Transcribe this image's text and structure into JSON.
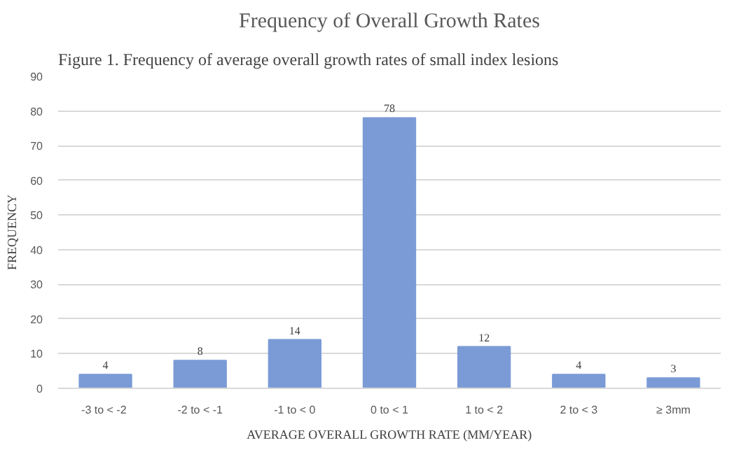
{
  "chart_data": {
    "type": "bar",
    "title": "Frequency of Overall Growth Rates",
    "annotations": [
      "Figure 1. Frequency of average overall growth rates of small index lesions"
    ],
    "xlabel": "AVERAGE OVERALL GROWTH RATE (MM/YEAR)",
    "ylabel": "FREQUENCY",
    "categories": [
      "-3  to < -2",
      "-2 to < -1",
      "-1 to < 0",
      "0 to < 1",
      "1 to < 2",
      "2 to < 3",
      "≥ 3mm"
    ],
    "values": [
      4,
      8,
      14,
      78,
      12,
      4,
      3
    ],
    "color": "#7a9bd6",
    "ylim": [
      0,
      90
    ],
    "yticks": [
      0,
      10,
      20,
      30,
      40,
      50,
      60,
      70,
      80,
      90
    ],
    "grid": "y",
    "data_labels": true
  }
}
